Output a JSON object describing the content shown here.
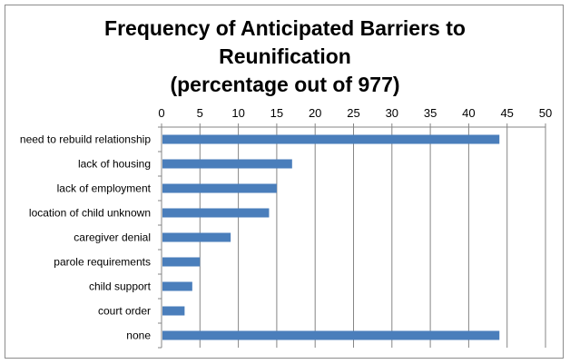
{
  "chart_data": {
    "type": "bar",
    "orientation": "horizontal",
    "title_lines": [
      "Frequency of Anticipated Barriers to",
      "Reunification",
      "(percentage out of 977)"
    ],
    "categories": [
      "need to rebuild relationship",
      "lack of housing",
      "lack of employment",
      "location of child unknown",
      "caregiver denial",
      "parole requirements",
      "child support",
      "court order",
      "none"
    ],
    "values": [
      44,
      17,
      15,
      14,
      9,
      5,
      4,
      3,
      44
    ],
    "xlim": [
      0,
      50
    ],
    "xticks": [
      0,
      5,
      10,
      15,
      20,
      25,
      30,
      35,
      40,
      45,
      50
    ],
    "xaxis_position": "top",
    "grid": true,
    "legend": "none",
    "bar_color": "#4a7ebb",
    "grid_color": "#868686"
  }
}
